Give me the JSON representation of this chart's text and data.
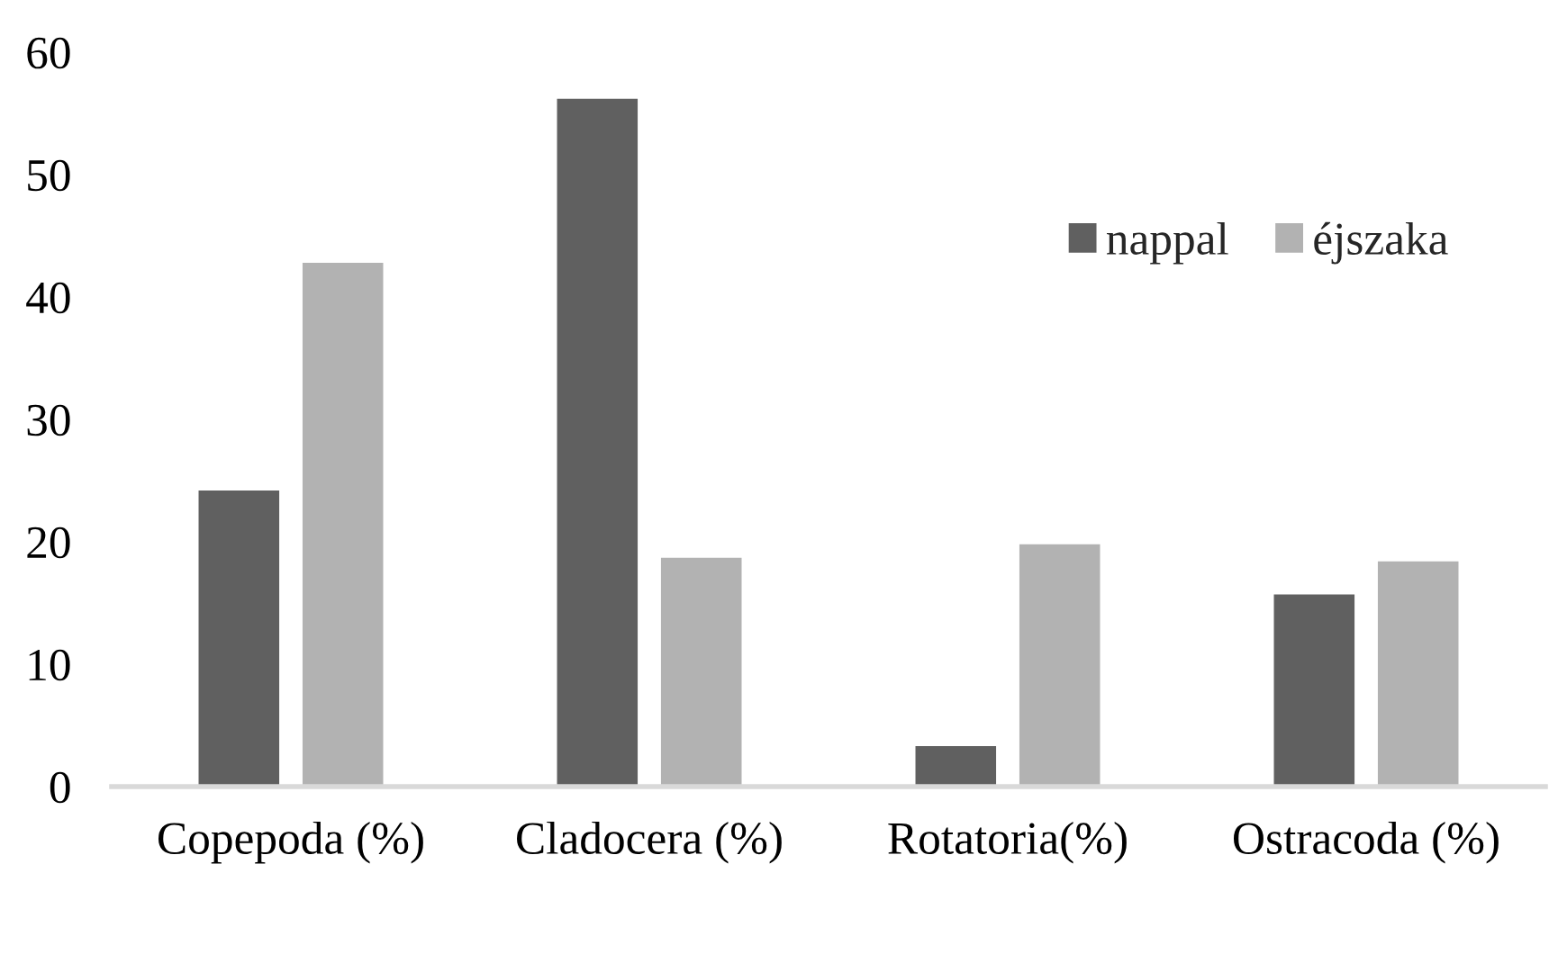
{
  "chart_data": {
    "type": "bar",
    "categories": [
      "Copepoda (%)",
      "Cladocera (%)",
      "Rotatoria(%)",
      "Ostracoda (%)"
    ],
    "series": [
      {
        "name": "nappal",
        "color": "#606060",
        "values": [
          24.2,
          56.2,
          3.3,
          15.7
        ]
      },
      {
        "name": "éjszaka",
        "color": "#b2b2b2",
        "values": [
          42.8,
          18.7,
          19.8,
          18.4
        ]
      }
    ],
    "ylim": [
      0,
      60
    ],
    "yticks": [
      0,
      10,
      20,
      30,
      40,
      50,
      60
    ],
    "legend": "top right"
  }
}
